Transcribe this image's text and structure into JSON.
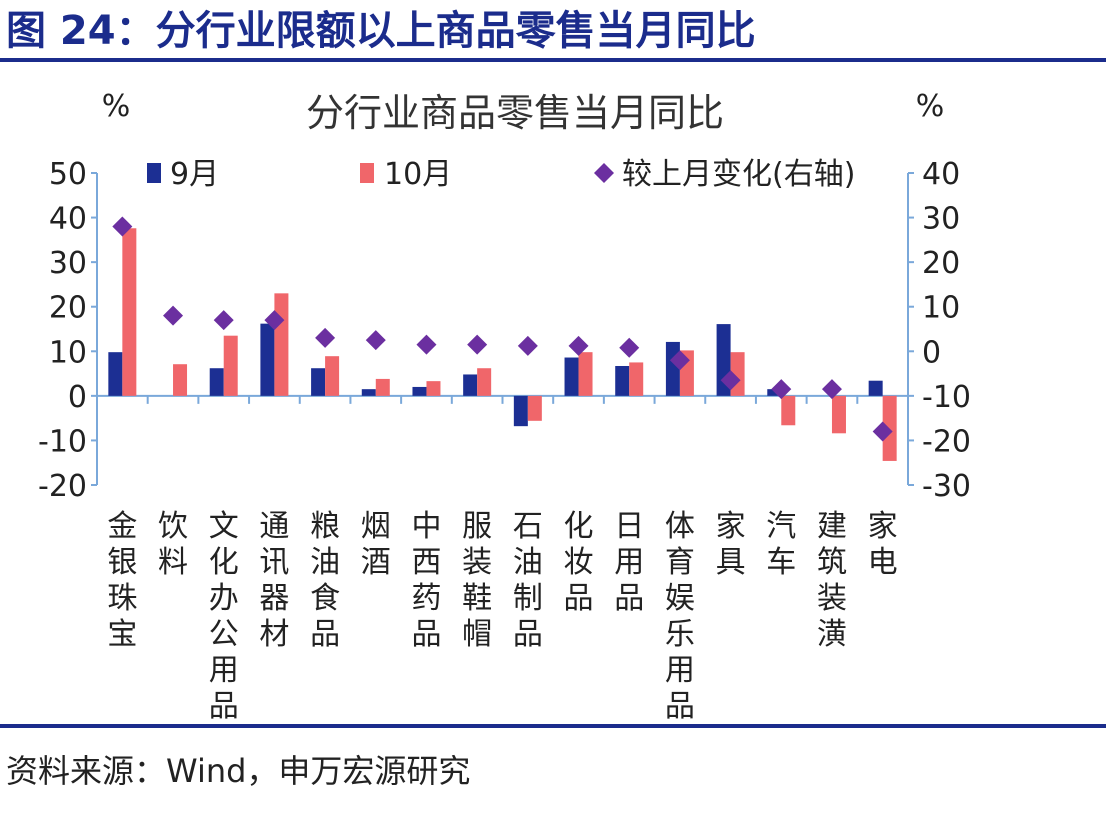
{
  "header": {
    "figure_title": "图 24：分行业限额以上商品零售当月同比"
  },
  "footer": {
    "source": "资料来源：Wind，申万宏源研究"
  },
  "colors": {
    "brand": "#1b2c8c",
    "sep_bar": "#1c2f93",
    "oct_bar": "#f0666a",
    "change_marker": "#6b2fa0",
    "axis": "#7aa8da",
    "text": "#222222"
  },
  "chart_data": {
    "type": "bar",
    "title": "分行业商品零售当月同比",
    "ylabel_left": "%",
    "ylabel_right": "%",
    "ylim_left": [
      -20,
      50
    ],
    "ylim_right": [
      -30,
      40
    ],
    "yticks_left": [
      "50",
      "40",
      "30",
      "20",
      "10",
      "0",
      "-10",
      "-20"
    ],
    "yticks_right": [
      "40",
      "30",
      "20",
      "10",
      "0",
      "-10",
      "-20",
      "-30"
    ],
    "legend": [
      "9月",
      "10月",
      "较上月变化(右轴)"
    ],
    "categories": [
      "金银珠宝",
      "饮料",
      "文化办公用品",
      "通讯器材",
      "粮油食品",
      "烟酒",
      "中西药品",
      "服装鞋帽",
      "石油制品",
      "化妆品",
      "日用品",
      "体育娱乐用品",
      "家具",
      "汽车",
      "建筑装潢",
      "家电"
    ],
    "series": [
      {
        "name": "9月",
        "axis": "left",
        "kind": "bar",
        "values": [
          9.8,
          0.0,
          6.2,
          16.2,
          6.2,
          1.5,
          2.0,
          4.8,
          -6.8,
          8.6,
          6.7,
          12.1,
          16.1,
          1.5,
          0.0,
          3.4
        ]
      },
      {
        "name": "10月",
        "axis": "left",
        "kind": "bar",
        "values": [
          37.6,
          7.1,
          13.5,
          23.0,
          8.9,
          3.8,
          3.3,
          6.2,
          -5.6,
          9.8,
          7.5,
          10.2,
          9.8,
          -6.6,
          -8.4,
          -14.6
        ]
      },
      {
        "name": "较上月变化(右轴)",
        "axis": "right",
        "kind": "scatter",
        "values": [
          28,
          8,
          7,
          7,
          3,
          2.5,
          1.5,
          1.5,
          1.2,
          1.2,
          0.8,
          -2,
          -6.5,
          -8.5,
          -8.5,
          -18
        ]
      }
    ]
  }
}
